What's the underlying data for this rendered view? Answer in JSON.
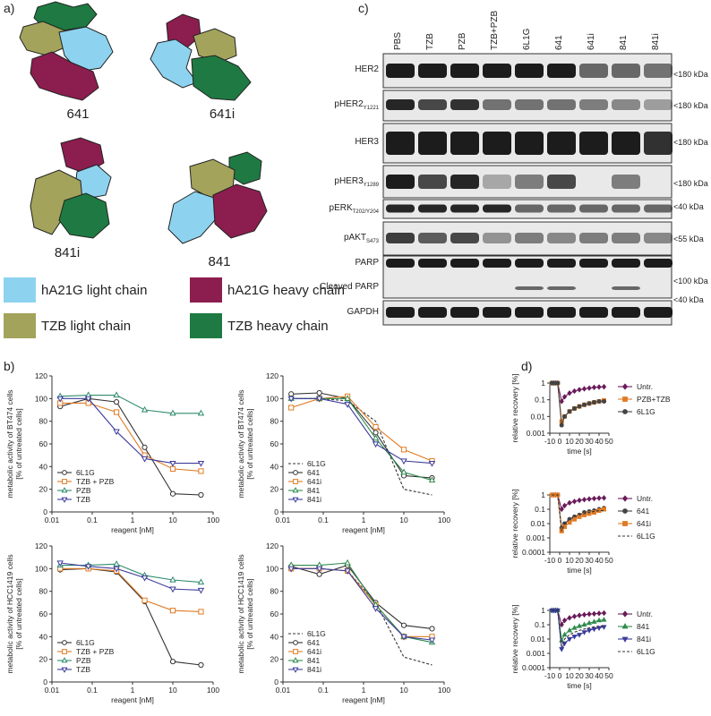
{
  "panel_labels": [
    "a)",
    "b)",
    "c)",
    "d)"
  ],
  "structures": [
    "641",
    "641i",
    "841i",
    "841"
  ],
  "chain_legend": [
    {
      "name": "hA21G light chain",
      "color": "#8dd3f0"
    },
    {
      "name": "hA21G heavy chain",
      "color": "#8c1d4f"
    },
    {
      "name": "TZB light chain",
      "color": "#a3a35c"
    },
    {
      "name": "TZB heavy chain",
      "color": "#1e7a42"
    }
  ],
  "blot": {
    "lanes": [
      "PBS",
      "TZB",
      "PZB",
      "TZB+PZB",
      "6L1G",
      "641",
      "641i",
      "841",
      "841i"
    ],
    "rows": [
      {
        "label": "HER2",
        "size": "<180 kDa"
      },
      {
        "label": "pHER2",
        "sub": "Y1221",
        "size": "<180 kDa"
      },
      {
        "label": "HER3",
        "size": "<180 kDa"
      },
      {
        "label": "pHER3",
        "sub": "Y1289",
        "size": "<180 kDa"
      },
      {
        "label": "pERK",
        "sub": "T202/Y204",
        "size": "<40 kDa"
      },
      {
        "label": "pAKT",
        "sub": "S473",
        "size": "<55 kDa"
      },
      {
        "label": "PARP"
      },
      {
        "label": "Cleaved PARP",
        "size": "<100 kDa"
      },
      {
        "label": "GAPDH",
        "size": "<40 kDa"
      }
    ]
  },
  "chart_data": [
    {
      "type": "line",
      "xlog": true,
      "x": [
        0.016,
        0.08,
        0.4,
        2,
        10,
        50
      ],
      "xlim": [
        0.01,
        100
      ],
      "xticks": [
        0.01,
        0.1,
        1,
        10,
        100
      ],
      "ylim": [
        0,
        120
      ],
      "yticks": [
        0,
        20,
        40,
        60,
        80,
        100,
        120
      ],
      "xlabel": "reagent [nM]",
      "ylabel": [
        "metabolic activity of BT474 cells",
        "[% of untreated cells]"
      ],
      "legend": "lower left",
      "series": [
        {
          "name": "6L1G",
          "color": "#333333",
          "marker": "circle",
          "values": [
            93,
            100,
            97,
            57,
            16,
            15
          ]
        },
        {
          "name": "TZB + PZB",
          "color": "#e07b24",
          "marker": "square",
          "values": [
            96,
            96,
            88,
            50,
            38,
            36
          ]
        },
        {
          "name": "PZB",
          "color": "#2e8b6e",
          "marker": "triangle-up",
          "values": [
            102,
            103,
            103,
            90,
            87,
            87
          ]
        },
        {
          "name": "TZB",
          "color": "#3c3c9c",
          "marker": "triangle-down",
          "values": [
            100,
            100,
            71,
            47,
            43,
            43
          ]
        }
      ]
    },
    {
      "type": "line",
      "xlog": true,
      "x": [
        0.016,
        0.08,
        0.4,
        2,
        10,
        50
      ],
      "xlim": [
        0.01,
        100
      ],
      "xticks": [
        0.01,
        0.1,
        1,
        10,
        100
      ],
      "ylim": [
        0,
        120
      ],
      "yticks": [
        0,
        20,
        40,
        60,
        80,
        100,
        120
      ],
      "xlabel": "reagent [nM]",
      "ylabel": [
        "metabolic activity of BT474 cells",
        "[% of untreated cells]"
      ],
      "legend": "lower left",
      "series": [
        {
          "name": "6L1G",
          "color": "#333333",
          "marker": "none",
          "dashed": true,
          "values": [
            100,
            100,
            98,
            80,
            20,
            15
          ]
        },
        {
          "name": "641",
          "color": "#333333",
          "marker": "circle",
          "values": [
            104,
            105,
            100,
            70,
            32,
            30
          ]
        },
        {
          "name": "641i",
          "color": "#e07b24",
          "marker": "square",
          "values": [
            92,
            100,
            102,
            75,
            55,
            45
          ]
        },
        {
          "name": "841",
          "color": "#2e8b4e",
          "marker": "triangle-up",
          "values": [
            100,
            100,
            100,
            65,
            35,
            28
          ]
        },
        {
          "name": "841i",
          "color": "#3c3c9c",
          "marker": "triangle-down",
          "values": [
            100,
            100,
            95,
            60,
            45,
            43
          ]
        }
      ]
    },
    {
      "type": "line",
      "xlog": true,
      "x": [
        0.016,
        0.08,
        0.4,
        2,
        10,
        50
      ],
      "xlim": [
        0.01,
        100
      ],
      "xticks": [
        0.01,
        0.1,
        1,
        10,
        100
      ],
      "ylim": [
        0,
        120
      ],
      "yticks": [
        0,
        20,
        40,
        60,
        80,
        100,
        120
      ],
      "xlabel": "reagent [nM]",
      "ylabel": [
        "metabolic activity of HCC1419 cells",
        "[% of untreated cells]"
      ],
      "legend": "lower left",
      "series": [
        {
          "name": "6L1G",
          "color": "#333333",
          "marker": "circle",
          "values": [
            99,
            100,
            97,
            71,
            18,
            15
          ]
        },
        {
          "name": "TZB + PZB",
          "color": "#e07b24",
          "marker": "square",
          "values": [
            100,
            100,
            98,
            72,
            63,
            62
          ]
        },
        {
          "name": "PZB",
          "color": "#2e8b6e",
          "marker": "triangle-up",
          "values": [
            103,
            103,
            104,
            94,
            90,
            88
          ]
        },
        {
          "name": "TZB",
          "color": "#3c3c9c",
          "marker": "triangle-down",
          "values": [
            105,
            102,
            100,
            92,
            82,
            81
          ]
        }
      ]
    },
    {
      "type": "line",
      "xlog": true,
      "x": [
        0.016,
        0.08,
        0.4,
        2,
        10,
        50
      ],
      "xlim": [
        0.01,
        100
      ],
      "xticks": [
        0.01,
        0.1,
        1,
        10,
        100
      ],
      "ylim": [
        0,
        120
      ],
      "yticks": [
        0,
        20,
        40,
        60,
        80,
        100,
        120
      ],
      "xlabel": "reagent [nM]",
      "ylabel": [
        "metabolic activity of HCC1419 cells",
        "[% of untreated cells]"
      ],
      "legend": "lower left",
      "series": [
        {
          "name": "6L1G",
          "color": "#333333",
          "marker": "none",
          "dashed": true,
          "values": [
            100,
            100,
            98,
            70,
            22,
            15
          ]
        },
        {
          "name": "641",
          "color": "#333333",
          "marker": "circle",
          "values": [
            102,
            95,
            103,
            70,
            50,
            47
          ]
        },
        {
          "name": "641i",
          "color": "#e07b24",
          "marker": "square",
          "values": [
            100,
            100,
            98,
            68,
            40,
            40
          ]
        },
        {
          "name": "841",
          "color": "#2e8b4e",
          "marker": "triangle-up",
          "values": [
            103,
            103,
            105,
            68,
            40,
            35
          ]
        },
        {
          "name": "841i",
          "color": "#3c3c9c",
          "marker": "triangle-down",
          "values": [
            100,
            100,
            98,
            65,
            40,
            37
          ]
        }
      ]
    },
    {
      "type": "line",
      "ylog": true,
      "x": [
        -8,
        -6,
        -4,
        -2,
        2,
        5,
        10,
        15,
        20,
        25,
        30,
        35,
        40,
        45
      ],
      "xlim": [
        -10,
        50
      ],
      "xticks": [
        -10,
        0,
        10,
        20,
        30,
        40,
        50
      ],
      "ylim": [
        0.001,
        1
      ],
      "yticks": [
        0.001,
        0.01,
        0.1,
        1
      ],
      "xlabel": "time [s]",
      "ylabel": [
        "relative recovery [%]"
      ],
      "legend": "outside right",
      "series": [
        {
          "name": "Untr.",
          "color": "#6a1b5a",
          "marker": "diamond",
          "values": [
            1,
            1,
            1,
            1,
            0.08,
            0.15,
            0.25,
            0.33,
            0.4,
            0.45,
            0.5,
            0.55,
            0.58,
            0.6
          ]
        },
        {
          "name": "PZB+TZB",
          "color": "#e07b24",
          "marker": "square",
          "values": [
            1,
            1,
            1,
            1,
            0.005,
            0.01,
            0.02,
            0.03,
            0.04,
            0.05,
            0.06,
            0.07,
            0.08,
            0.09
          ]
        },
        {
          "name": "6L1G",
          "color": "#444444",
          "marker": "circle",
          "values": [
            1,
            1,
            1,
            1,
            0.003,
            0.01,
            0.02,
            0.03,
            0.04,
            0.05,
            0.06,
            0.07,
            0.08,
            0.08
          ]
        }
      ]
    },
    {
      "type": "line",
      "ylog": true,
      "x": [
        -8,
        -6,
        -4,
        -2,
        2,
        5,
        10,
        15,
        20,
        25,
        30,
        35,
        40,
        45
      ],
      "xlim": [
        -10,
        50
      ],
      "xticks": [
        -10,
        0,
        10,
        20,
        30,
        40,
        50
      ],
      "ylim": [
        0.0001,
        1
      ],
      "yticks": [
        0.0001,
        0.001,
        0.01,
        0.1,
        1
      ],
      "xlabel": "time [s]",
      "ylabel": [
        "relative recovery [%]"
      ],
      "legend": "outside right",
      "series": [
        {
          "name": "Untr.",
          "color": "#6a1b5a",
          "marker": "diamond",
          "values": [
            1,
            1,
            1,
            1,
            0.1,
            0.18,
            0.28,
            0.35,
            0.42,
            0.47,
            0.52,
            0.56,
            0.6,
            0.62
          ]
        },
        {
          "name": "641",
          "color": "#444444",
          "marker": "circle",
          "values": [
            1,
            1,
            1,
            1,
            0.005,
            0.01,
            0.02,
            0.03,
            0.04,
            0.06,
            0.07,
            0.08,
            0.1,
            0.12
          ]
        },
        {
          "name": "641i",
          "color": "#e07b24",
          "marker": "square",
          "values": [
            1,
            1,
            1,
            1,
            0.003,
            0.006,
            0.012,
            0.02,
            0.03,
            0.04,
            0.05,
            0.06,
            0.08,
            0.1
          ]
        },
        {
          "name": "6L1G",
          "color": "#333333",
          "marker": "none",
          "dashed": true,
          "values": [
            1,
            1,
            1,
            1,
            0.003,
            0.01,
            0.02,
            0.03,
            0.04,
            0.05,
            0.06,
            0.07,
            0.08,
            0.08
          ]
        }
      ]
    },
    {
      "type": "line",
      "ylog": true,
      "x": [
        -8,
        -6,
        -4,
        -2,
        2,
        5,
        10,
        15,
        20,
        25,
        30,
        35,
        40,
        45
      ],
      "xlim": [
        -10,
        50
      ],
      "xticks": [
        -10,
        0,
        10,
        20,
        30,
        40,
        50
      ],
      "ylim": [
        0.0001,
        1
      ],
      "yticks": [
        0.0001,
        0.001,
        0.01,
        0.1,
        1
      ],
      "xlabel": "time [s]",
      "ylabel": [
        "relative recovery [%]"
      ],
      "legend": "outside right",
      "series": [
        {
          "name": "Untr.",
          "color": "#6a1b5a",
          "marker": "diamond",
          "values": [
            1,
            1,
            1,
            1,
            0.1,
            0.2,
            0.3,
            0.38,
            0.45,
            0.5,
            0.55,
            0.58,
            0.62,
            0.65
          ]
        },
        {
          "name": "841",
          "color": "#2e8b4e",
          "marker": "triangle-up",
          "values": [
            1,
            1,
            1,
            1,
            0.008,
            0.02,
            0.04,
            0.06,
            0.08,
            0.1,
            0.13,
            0.16,
            0.2,
            0.22
          ]
        },
        {
          "name": "841i",
          "color": "#3c3c9c",
          "marker": "triangle-down",
          "values": [
            1,
            1,
            1,
            1,
            0.002,
            0.005,
            0.01,
            0.015,
            0.02,
            0.03,
            0.04,
            0.05,
            0.06,
            0.07
          ]
        },
        {
          "name": "6L1G",
          "color": "#333333",
          "marker": "none",
          "dashed": true,
          "values": [
            1,
            1,
            1,
            1,
            0.003,
            0.01,
            0.02,
            0.03,
            0.04,
            0.05,
            0.06,
            0.07,
            0.08,
            0.08
          ]
        }
      ]
    }
  ]
}
